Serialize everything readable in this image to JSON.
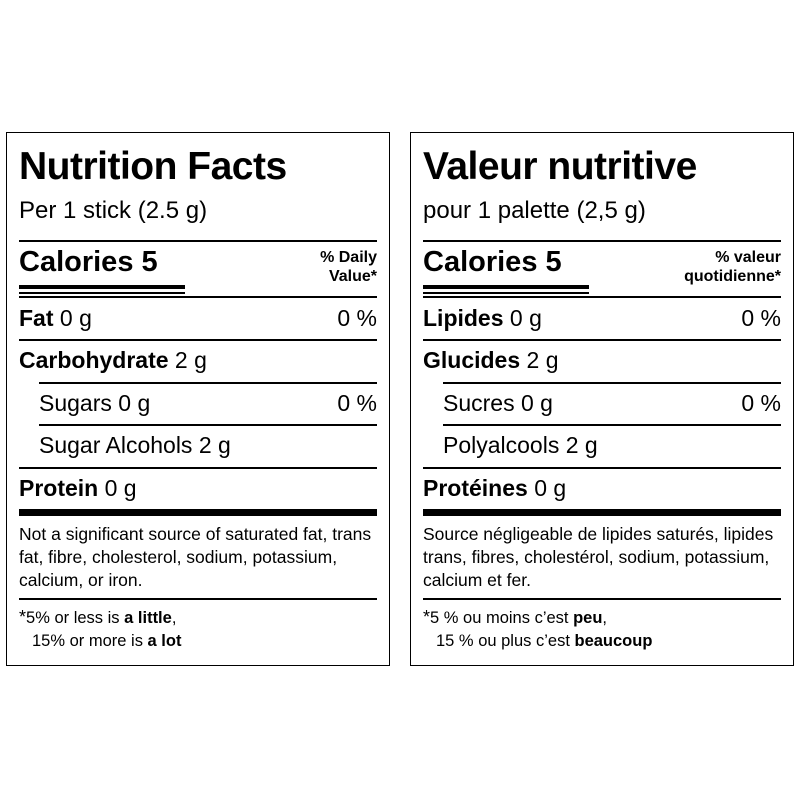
{
  "english": {
    "title": "Nutrition Facts",
    "serving": "Per 1 stick (2.5 g)",
    "calories_label": "Calories",
    "calories_value": "5",
    "dv_header_line1": "% Daily",
    "dv_header_line2": "Value*",
    "rows": [
      {
        "label": "Fat",
        "amount": " 0 g",
        "percent": "0 %"
      },
      {
        "label": "Carbohydrate",
        "amount": " 2 g",
        "percent": ""
      },
      {
        "label": "Sugars 0 g",
        "amount": "",
        "percent": "0 %"
      },
      {
        "label": "Sugar Alcohols 2 g",
        "amount": "",
        "percent": ""
      },
      {
        "label": "Protein",
        "amount": " 0 g",
        "percent": ""
      }
    ],
    "footnote": "Not a significant source of saturated fat, trans fat, fibre, cholesterol, sodium, potassium, calcium, or iron.",
    "dv_note": {
      "star": "*",
      "line1_prefix": "5% or less is ",
      "line1_bold": "a little",
      "line1_suffix": ",",
      "line2_prefix": "15% or more is ",
      "line2_bold": "a lot"
    }
  },
  "french": {
    "title": "Valeur nutritive",
    "serving": "pour 1 palette (2,5 g)",
    "calories_label": "Calories",
    "calories_value": "5",
    "dv_header_line1": "% valeur",
    "dv_header_line2": "quotidienne*",
    "rows": [
      {
        "label": "Lipides",
        "amount": " 0 g",
        "percent": "0 %"
      },
      {
        "label": "Glucides",
        "amount": " 2 g",
        "percent": ""
      },
      {
        "label": "Sucres 0 g",
        "amount": "",
        "percent": "0 %"
      },
      {
        "label": "Polyalcools 2 g",
        "amount": "",
        "percent": ""
      },
      {
        "label": "Protéines",
        "amount": " 0 g",
        "percent": ""
      }
    ],
    "footnote": "Source négligeable de lipides saturés, lipides trans, fibres, cholestérol, sodium, potassium, calcium et fer.",
    "dv_note": {
      "star": "*",
      "line1_prefix": "5 % ou moins c’est ",
      "line1_bold": "peu",
      "line1_suffix": ",",
      "line2_prefix": "15 % ou plus c’est ",
      "line2_bold": "beaucoup"
    }
  }
}
